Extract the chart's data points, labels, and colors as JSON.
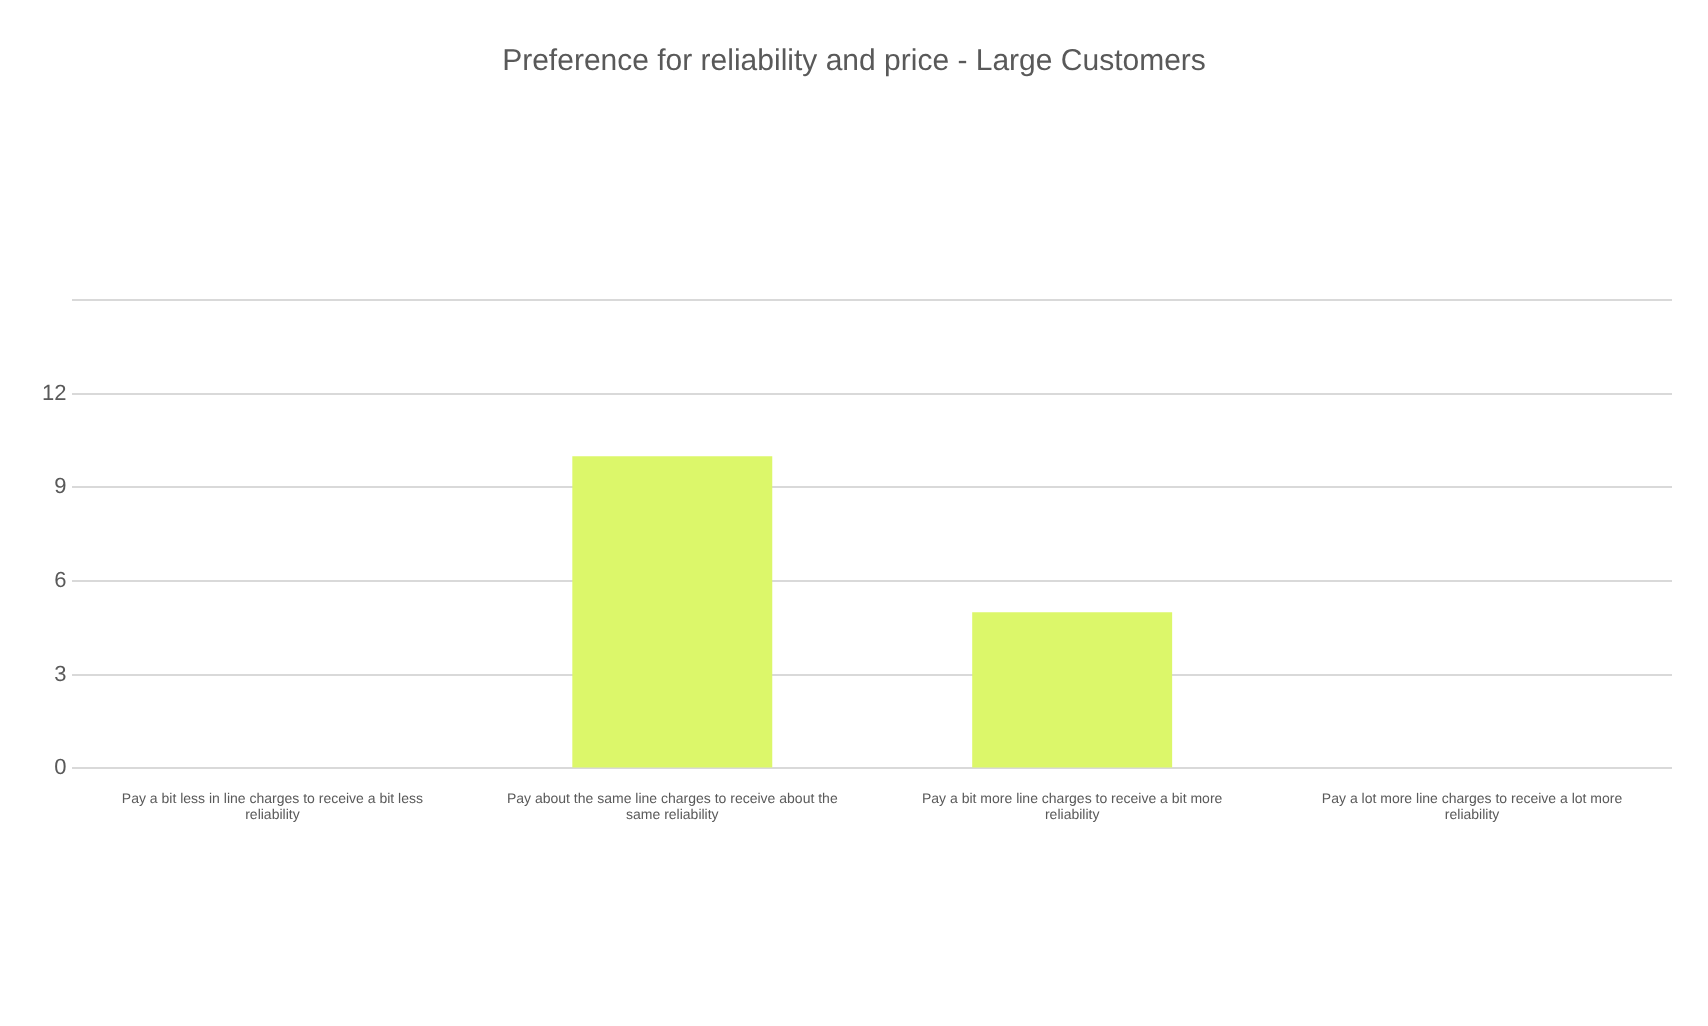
{
  "chart_data": {
    "type": "bar",
    "title": "Preference for reliability and price - Large Customers",
    "categories": [
      "Pay a bit less in line charges to receive a bit less reliability",
      "Pay about the same line charges to receive about the same reliability",
      "Pay a bit more line charges to receive a bit more reliability",
      "Pay a lot more line charges to receive a lot more reliability"
    ],
    "values": [
      0,
      10,
      5,
      0
    ],
    "color": "#dcf76a",
    "ylim": [
      0,
      15
    ],
    "yticks": [
      0,
      3,
      6,
      9,
      12,
      {
        "value": 15,
        "label": null
      }
    ],
    "grid": "y",
    "legend": false
  }
}
